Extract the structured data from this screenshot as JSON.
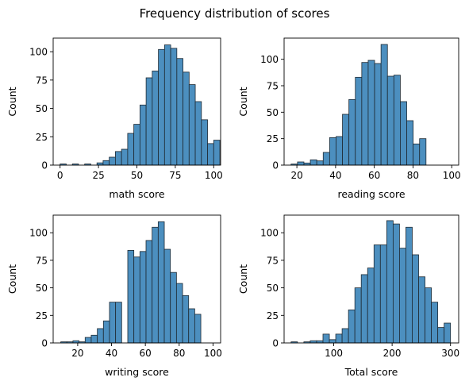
{
  "figure": {
    "title": "Frequency distribution of scores"
  },
  "colors": {
    "bar_fill": "#4C8FBF",
    "bar_edge": "#1f2a33",
    "axis": "#000000"
  },
  "chart_data": [
    {
      "type": "bar",
      "subtype": "histogram",
      "xlabel": "math score",
      "ylabel": "Count",
      "xlim": [
        -4.5,
        104.5
      ],
      "ylim": [
        0,
        112
      ],
      "xticks": [
        0,
        25,
        50,
        75,
        100
      ],
      "yticks": [
        0,
        25,
        50,
        75,
        100
      ],
      "bin_start": 0,
      "bin_width": 4,
      "values": [
        1,
        0,
        1,
        0,
        1,
        0,
        2,
        4,
        7,
        12,
        14,
        28,
        36,
        53,
        77,
        83,
        102,
        106,
        103,
        94,
        82,
        71,
        56,
        40,
        19,
        22
      ]
    },
    {
      "type": "bar",
      "subtype": "histogram",
      "xlabel": "reading score",
      "ylabel": "Count",
      "xlim": [
        13.4,
        103.6
      ],
      "ylim": [
        0,
        120
      ],
      "xticks": [
        20,
        40,
        60,
        80,
        100
      ],
      "yticks": [
        0,
        25,
        50,
        75,
        100
      ],
      "bin_start": 17,
      "bin_width": 3.32,
      "values": [
        1,
        3,
        2,
        5,
        4,
        12,
        26,
        27,
        48,
        62,
        83,
        97,
        99,
        96,
        114,
        84,
        85,
        60,
        42,
        20,
        25
      ]
    },
    {
      "type": "bar",
      "subtype": "histogram",
      "xlabel": "writing score",
      "ylabel": "Count",
      "xlim": [
        5.5,
        104.5
      ],
      "ylim": [
        0,
        116
      ],
      "xticks": [
        20,
        40,
        60,
        80,
        100
      ],
      "yticks": [
        0,
        25,
        50,
        75,
        100
      ],
      "bin_start": 10,
      "bin_width": 3.6,
      "values": [
        1,
        1,
        2,
        1,
        5,
        7,
        13,
        20,
        37,
        37,
        0,
        84,
        78,
        83,
        93,
        105,
        110,
        85,
        64,
        54,
        43,
        31,
        26
      ]
    },
    {
      "type": "bar",
      "subtype": "histogram",
      "xlabel": "Total score",
      "ylabel": "Count",
      "xlim": [
        15,
        314
      ],
      "ylim": [
        0,
        116
      ],
      "xticks": [
        100,
        200,
        300
      ],
      "yticks": [
        0,
        25,
        50,
        75,
        100
      ],
      "bin_start": 27,
      "bin_width": 10.92,
      "values": [
        1,
        0,
        1,
        2,
        2,
        8,
        3,
        8,
        13,
        30,
        50,
        62,
        68,
        89,
        89,
        111,
        108,
        86,
        105,
        80,
        60,
        50,
        37,
        14,
        18
      ]
    }
  ]
}
